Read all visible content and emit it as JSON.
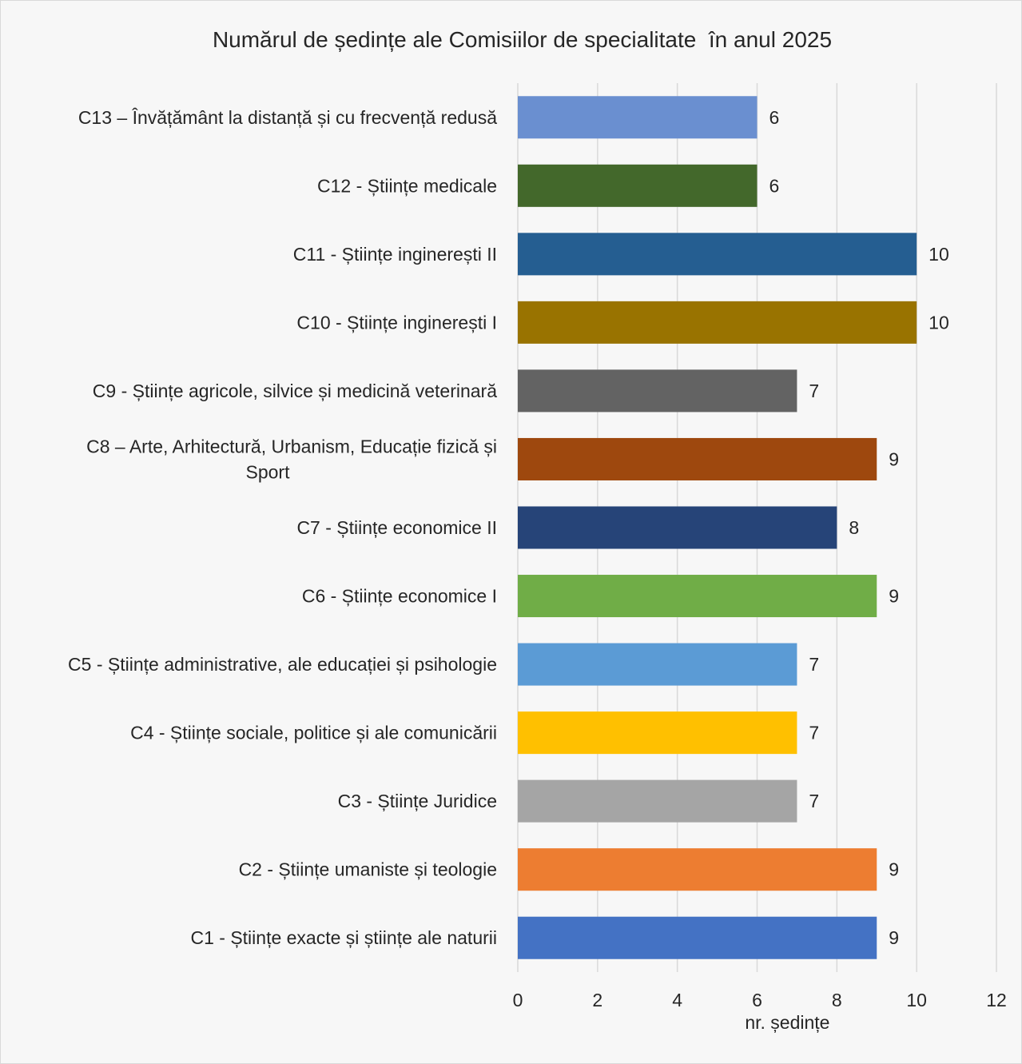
{
  "chart_data": {
    "type": "bar",
    "orientation": "horizontal",
    "title": "Numărul de ședințe ale Comisiilor de specialitate  în anul 2025",
    "xlabel": "nr. ședințe",
    "ylabel": "",
    "xlim": [
      0,
      12
    ],
    "xticks": [
      0,
      2,
      4,
      6,
      8,
      10,
      12
    ],
    "grid": "vertical",
    "legend": "none",
    "categories": [
      "C13 – Învățământ la distanță și cu frecvență redusă",
      "C12 - Științe medicale",
      "C11 - Științe inginerești II",
      "C10 - Științe inginerești I",
      "C9 - Științe agricole, silvice și medicină veterinară",
      "C8 – Arte, Arhitectură, Urbanism, Educație fizică și Sport",
      "C7 - Științe economice II",
      "C6 - Științe economice I",
      "C5 - Științe administrative, ale educației și psihologie",
      "C4 - Științe sociale, politice și ale comunicării",
      "C3 - Științe Juridice",
      "C2 - Științe umaniste și teologie",
      "C1 - Științe exacte și științe ale naturii"
    ],
    "category_lines": [
      [
        "C13 – Învățământ la distanță și cu frecvență redusă"
      ],
      [
        "C12 - Științe medicale"
      ],
      [
        "C11 - Științe inginerești II"
      ],
      [
        "C10 - Științe inginerești I"
      ],
      [
        "C9 - Științe agricole, silvice și medicină veterinară"
      ],
      [
        "C8 – Arte, Arhitectură, Urbanism, Educație fizică și",
        "Sport"
      ],
      [
        "C7 - Științe economice II"
      ],
      [
        "C6 - Științe economice I"
      ],
      [
        "C5 - Științe administrative, ale educației și psihologie"
      ],
      [
        "C4 - Științe sociale, politice și ale comunicării"
      ],
      [
        "C3 - Științe Juridice"
      ],
      [
        "C2 - Științe umaniste și teologie"
      ],
      [
        "C1 - Științe exacte și științe ale naturii"
      ]
    ],
    "values": [
      6,
      6,
      10,
      10,
      7,
      9,
      8,
      9,
      7,
      7,
      7,
      9,
      9
    ],
    "colors": [
      "#6a8fd0",
      "#43682b",
      "#255e91",
      "#997300",
      "#636363",
      "#9e480e",
      "#264478",
      "#70ad47",
      "#5b9bd5",
      "#ffc000",
      "#a5a5a5",
      "#ed7d31",
      "#4472c4"
    ],
    "data_labels": [
      "6",
      "6",
      "10",
      "10",
      "7",
      "9",
      "8",
      "9",
      "7",
      "7",
      "7",
      "9",
      "9"
    ]
  }
}
